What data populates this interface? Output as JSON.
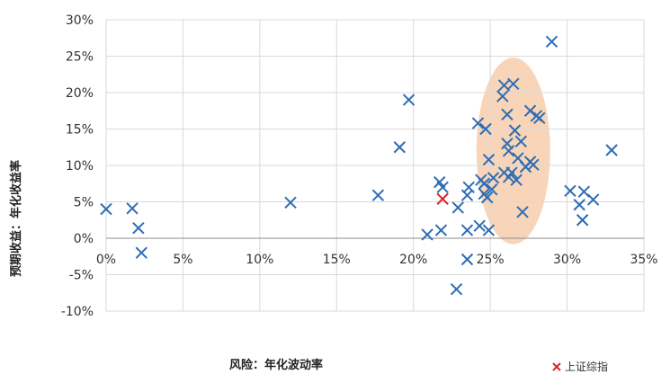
{
  "chart_data": {
    "type": "scatter",
    "title": "",
    "xlabel": "风险：年化波动率",
    "ylabel": "预期收益：年化收益率",
    "xlim": [
      0,
      35
    ],
    "ylim": [
      -10,
      30
    ],
    "x_ticks": [
      0,
      5,
      10,
      15,
      20,
      25,
      30,
      35
    ],
    "x_tick_labels": [
      "0%",
      "5%",
      "10%",
      "15%",
      "20%",
      "25%",
      "30%",
      "35%"
    ],
    "y_ticks": [
      -10,
      -5,
      0,
      5,
      10,
      15,
      20,
      25,
      30
    ],
    "y_tick_labels": [
      "-10%",
      "-5%",
      "0%",
      "5%",
      "10%",
      "15%",
      "20%",
      "25%",
      "30%"
    ],
    "grid": true,
    "legend_position": "bottom-right",
    "highlight_ellipse": {
      "cx": 26.5,
      "cy": 12,
      "rx": 2.4,
      "ry": 12.8,
      "color": "#f8d5b8"
    },
    "series": [
      {
        "name": "",
        "color": "#2e6db4",
        "marker": "x",
        "points": [
          [
            0,
            4
          ],
          [
            1.7,
            4.1
          ],
          [
            2.1,
            1.4
          ],
          [
            2.3,
            -2
          ],
          [
            12,
            4.9
          ],
          [
            17.7,
            5.9
          ],
          [
            19.1,
            12.5
          ],
          [
            19.7,
            19
          ],
          [
            20.9,
            0.5
          ],
          [
            21.7,
            7.7
          ],
          [
            21.8,
            1.1
          ],
          [
            21.9,
            7
          ],
          [
            22.8,
            -7
          ],
          [
            22.9,
            4.2
          ],
          [
            23.5,
            -2.9
          ],
          [
            23.5,
            1.1
          ],
          [
            23.5,
            5.9
          ],
          [
            23.6,
            7
          ],
          [
            24.2,
            15.8
          ],
          [
            24.3,
            1.7
          ],
          [
            24.4,
            8
          ],
          [
            24.6,
            6.1
          ],
          [
            24.6,
            7.5
          ],
          [
            24.7,
            15
          ],
          [
            24.8,
            5.6
          ],
          [
            24.9,
            1.1
          ],
          [
            24.9,
            10.8
          ],
          [
            25.1,
            6.7
          ],
          [
            25.2,
            8.3
          ],
          [
            25.8,
            19.5
          ],
          [
            25.9,
            21
          ],
          [
            25.9,
            9
          ],
          [
            26.1,
            13
          ],
          [
            26.1,
            17
          ],
          [
            26.2,
            12
          ],
          [
            26.2,
            8.4
          ],
          [
            26.4,
            9
          ],
          [
            26.5,
            21.2
          ],
          [
            26.6,
            14.8
          ],
          [
            26.7,
            8
          ],
          [
            26.8,
            11
          ],
          [
            27,
            13.3
          ],
          [
            27.1,
            3.6
          ],
          [
            27.3,
            9.8
          ],
          [
            27.6,
            10.5
          ],
          [
            27.6,
            17.5
          ],
          [
            27.8,
            10.1
          ],
          [
            28,
            16.8
          ],
          [
            28.2,
            16.5
          ],
          [
            29,
            27
          ],
          [
            30.2,
            6.5
          ],
          [
            30.8,
            4.6
          ],
          [
            31,
            2.5
          ],
          [
            31.1,
            6.4
          ],
          [
            31.7,
            5.3
          ],
          [
            32.9,
            12.1
          ]
        ]
      },
      {
        "name": "上证综指",
        "color": "#e02424",
        "marker": "x",
        "points": [
          [
            21.9,
            5.4
          ]
        ]
      }
    ]
  }
}
